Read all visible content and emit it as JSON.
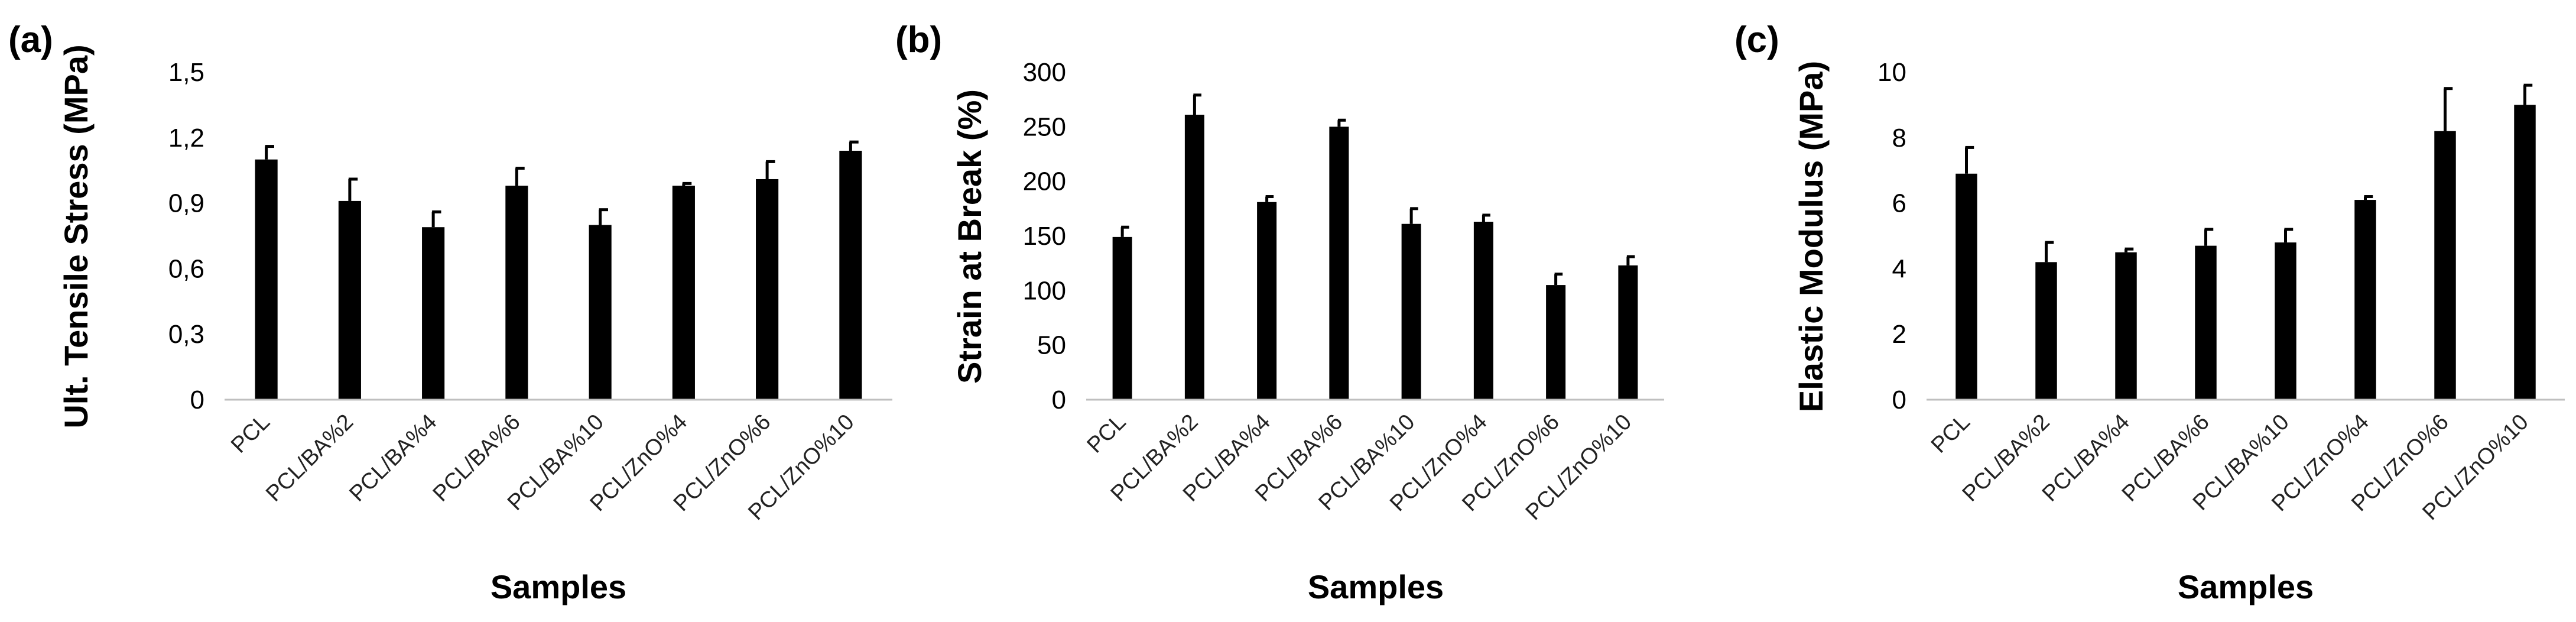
{
  "chart_data": [
    {
      "panel": "(a)",
      "type": "bar",
      "categories": [
        "PCL",
        "PCL/BA%2",
        "PCL/BA%4",
        "PCL/BA%6",
        "PCL/BA%10",
        "PCL/ZnO%4",
        "PCL/ZnO%6",
        "PCL/ZnO%10"
      ],
      "values": [
        1.1,
        0.91,
        0.79,
        0.98,
        0.8,
        0.98,
        1.01,
        1.14
      ],
      "errors": [
        0.06,
        0.1,
        0.07,
        0.08,
        0.07,
        0.01,
        0.08,
        0.04
      ],
      "xlabel": "Samples",
      "ylabel": "Ult. Tensile Stress (MPa)",
      "ylim": [
        0,
        1.5
      ],
      "yticks": [
        "0",
        "0,3",
        "0,6",
        "0,9",
        "1,2",
        "1,5"
      ],
      "color": "#000000",
      "grid": false
    },
    {
      "panel": "(b)",
      "type": "bar",
      "categories": [
        "PCL",
        "PCL/BA%2",
        "PCL/BA%4",
        "PCL/BA%6",
        "PCL/BA%10",
        "PCL/ZnO%4",
        "PCL/ZnO%6",
        "PCL/ZnO%10"
      ],
      "values": [
        149,
        261,
        181,
        250,
        161,
        163,
        105,
        123
      ],
      "errors": [
        9,
        18,
        5,
        6,
        14,
        6,
        10,
        8
      ],
      "xlabel": "Samples",
      "ylabel": "Strain at Break (%)",
      "ylim": [
        0,
        300
      ],
      "yticks": [
        "0",
        "50",
        "100",
        "150",
        "200",
        "250",
        "300"
      ],
      "color": "#000000",
      "grid": false
    },
    {
      "panel": "(c)",
      "type": "bar",
      "categories": [
        "PCL",
        "PCL/BA%2",
        "PCL/BA%4",
        "PCL/BA%6",
        "PCL/BA%10",
        "PCL/ZnO%4",
        "PCL/ZnO%6",
        "PCL/ZnO%10"
      ],
      "values": [
        6.9,
        4.2,
        4.5,
        4.7,
        4.8,
        6.1,
        8.2,
        9.0
      ],
      "errors": [
        0.8,
        0.6,
        0.1,
        0.5,
        0.4,
        0.1,
        1.3,
        0.6
      ],
      "xlabel": "Samples",
      "ylabel": "Elastic Modulus (MPa)",
      "ylim": [
        0,
        10
      ],
      "yticks": [
        "0",
        "2",
        "4",
        "6",
        "8",
        "10"
      ],
      "color": "#000000",
      "grid": false
    }
  ]
}
